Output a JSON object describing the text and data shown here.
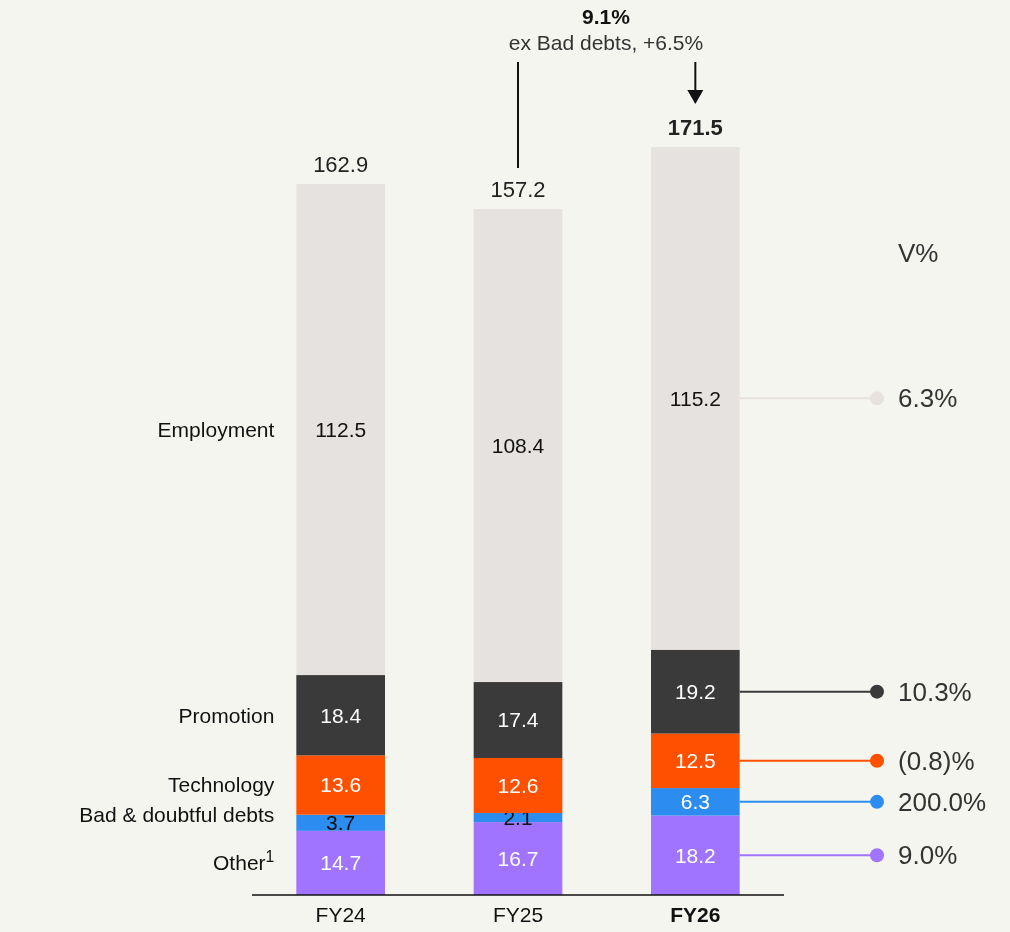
{
  "chart_data": {
    "type": "bar",
    "stacked": true,
    "data_labels": true,
    "legend": "left",
    "categories": [
      "FY24",
      "FY25",
      "FY26"
    ],
    "series": [
      {
        "name": "Other$^{1}$",
        "color": "#a074ff",
        "values": [
          14.7,
          16.7,
          18.2
        ]
      },
      {
        "name": "Bad & doubtful debts",
        "color": "#2d8cf0",
        "values": [
          3.7,
          2.1,
          6.3
        ]
      },
      {
        "name": "Technology",
        "color": "#ff5000",
        "values": [
          13.6,
          12.6,
          12.5
        ]
      },
      {
        "name": "Promotion",
        "color": "#3a3a3a",
        "values": [
          18.4,
          17.4,
          19.2
        ]
      },
      {
        "name": "Employment",
        "color": "#e6e2df",
        "values": [
          112.5,
          108.4,
          115.2
        ]
      }
    ],
    "totals": [
      "162.9",
      "157.2",
      "171.5"
    ],
    "annotations": [
      "9.1%",
      "ex Bad debts, +6.5%",
      "V%",
      "9.0%",
      "200.0%",
      "(0.8)%",
      "10.3%",
      "6.3%"
    ]
  }
}
